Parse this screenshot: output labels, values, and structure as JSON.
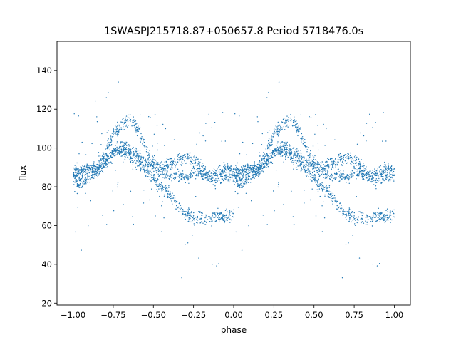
{
  "chart_data": {
    "type": "scatter",
    "title": "1SWASPJ215718.87+050657.8 Period 5718476.0s",
    "xlabel": "phase",
    "ylabel": "flux",
    "xlim": [
      -1.1,
      1.1
    ],
    "ylim": [
      19,
      155
    ],
    "xticks": [
      -1.0,
      -0.75,
      -0.5,
      -0.25,
      0.0,
      0.25,
      0.5,
      0.75,
      1.0
    ],
    "xtick_labels": [
      "−1.00",
      "−0.75",
      "−0.50",
      "−0.25",
      "0.00",
      "0.25",
      "0.50",
      "0.75",
      "1.00"
    ],
    "yticks": [
      20,
      40,
      60,
      80,
      100,
      120,
      140
    ],
    "ytick_labels": [
      "20",
      "40",
      "60",
      "80",
      "100",
      "120",
      "140"
    ],
    "grid": false,
    "marker_color": "#1f77b4",
    "series": [
      {
        "description": "folded light curve (repeated over two cycles), approximate trend samples",
        "phase": [
          0.0,
          0.05,
          0.1,
          0.15,
          0.2,
          0.25,
          0.3,
          0.35,
          0.4,
          0.45,
          0.5,
          0.55,
          0.6,
          0.65,
          0.7,
          0.75,
          0.8,
          0.85,
          0.9,
          0.95,
          1.0
        ],
        "upper_branch": [
          86,
          88,
          89,
          90,
          97,
          107,
          112,
          115,
          110,
          100,
          93,
          90,
          92,
          94,
          95,
          94,
          90,
          85,
          87,
          90,
          88
        ],
        "mid_branch": [
          88,
          87,
          90,
          89,
          92,
          97,
          102,
          99,
          96,
          92,
          90,
          88,
          86,
          86,
          85,
          88,
          86,
          85,
          84,
          86,
          85
        ],
        "lower_branch": [
          84,
          82,
          85,
          88,
          92,
          98,
          98,
          96,
          93,
          88,
          84,
          80,
          76,
          70,
          66,
          64,
          64,
          64,
          65,
          65,
          66
        ]
      }
    ]
  }
}
